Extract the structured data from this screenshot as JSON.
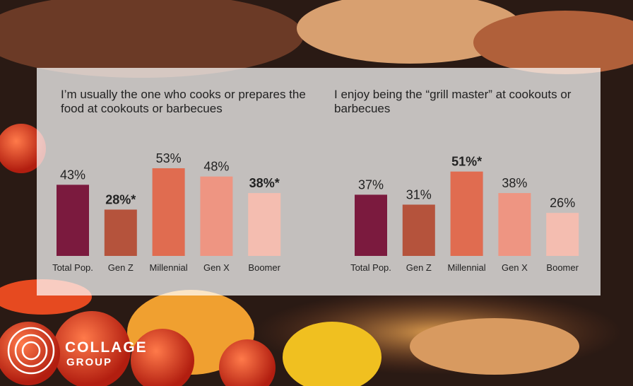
{
  "chart_data": [
    {
      "type": "bar",
      "title": "I’m usually the one who cooks or prepares the food at cookouts or barbecues",
      "categories": [
        "Total Pop.",
        "Gen Z",
        "Millennial",
        "Gen X",
        "Boomer"
      ],
      "values": [
        43,
        28,
        53,
        48,
        38
      ],
      "value_labels": [
        "43%",
        "28%*",
        "53%",
        "48%",
        "38%*"
      ],
      "colors": [
        "#7b1a3e",
        "#b5533c",
        "#e06c50",
        "#ee9582",
        "#f4bdb0"
      ]
    },
    {
      "type": "bar",
      "title": "I enjoy being the “grill master” at cookouts or barbecues",
      "categories": [
        "Total Pop.",
        "Gen Z",
        "Millennial",
        "Gen X",
        "Boomer"
      ],
      "values": [
        37,
        31,
        51,
        38,
        26
      ],
      "value_labels": [
        "37%",
        "31%",
        "51%*",
        "38%",
        "26%"
      ],
      "colors": [
        "#7b1a3e",
        "#b5533c",
        "#e06c50",
        "#ee9582",
        "#f4bdb0"
      ]
    }
  ],
  "logo": {
    "line1": "COLLAGE",
    "line2": "GROUP"
  }
}
